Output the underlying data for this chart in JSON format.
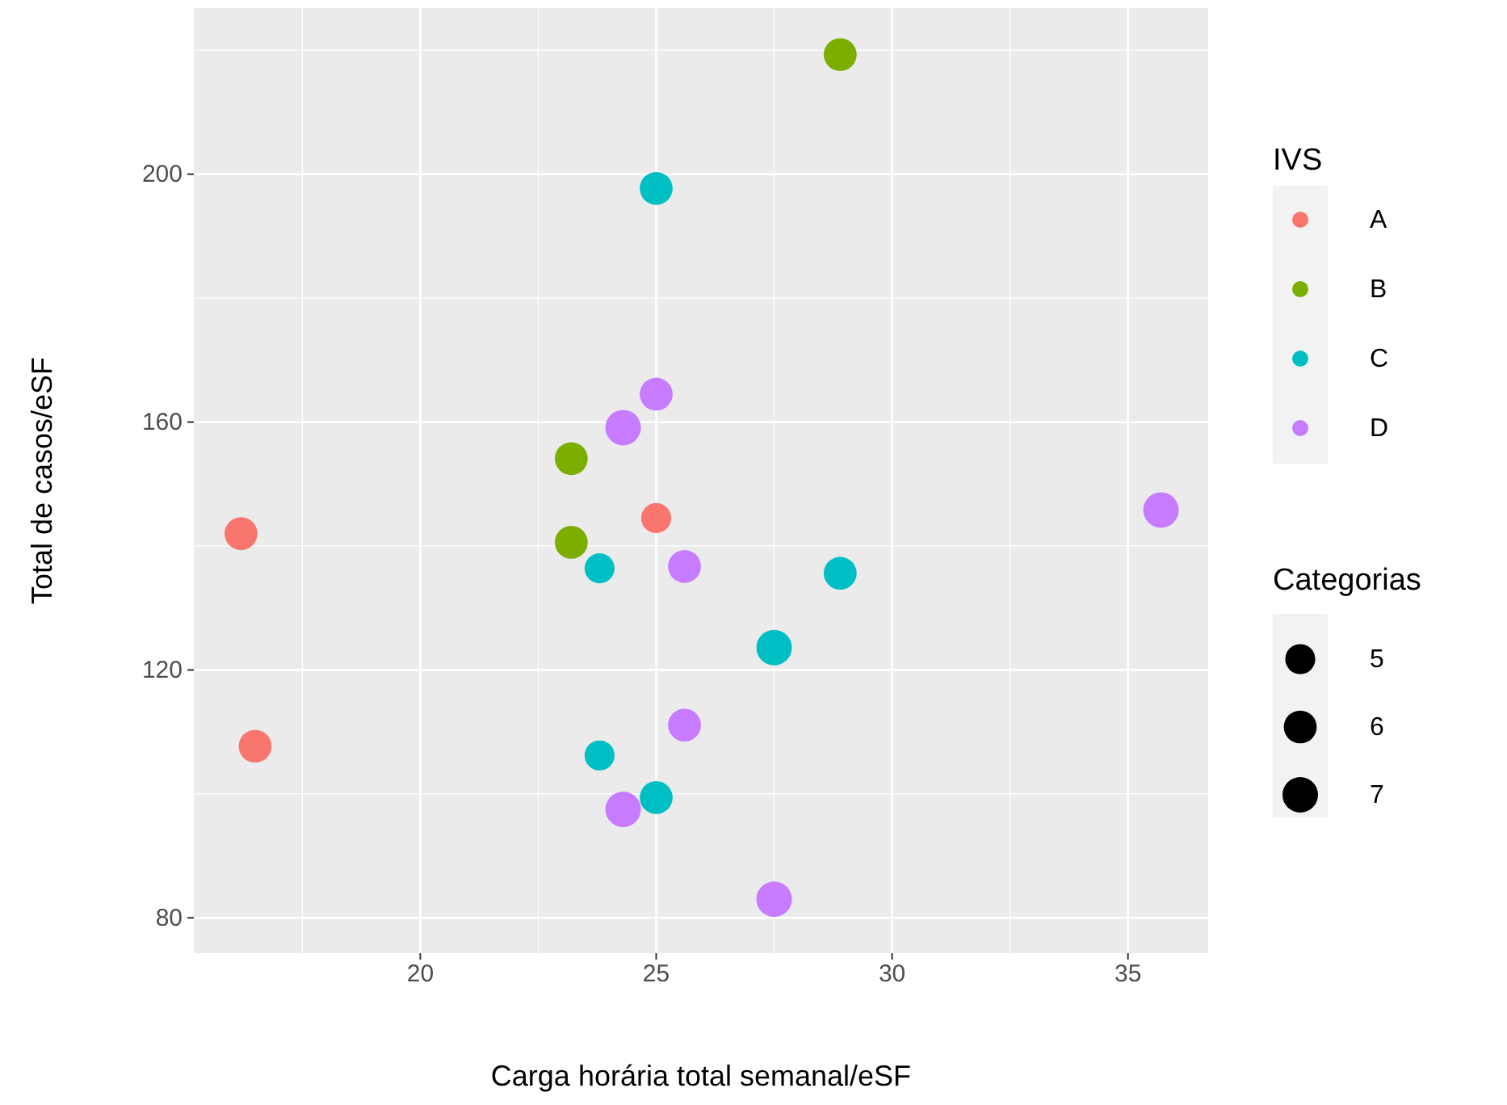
{
  "chart_data": {
    "type": "bubble",
    "xlabel": "Carga horária total semanal/eSF",
    "ylabel": "Total de casos/eSF",
    "legend_title": "IVS",
    "annotations": [
      "Categorias"
    ],
    "xlim": [
      15.2,
      36.7
    ],
    "xticks": [
      20,
      25,
      30,
      35
    ],
    "ylim": [
      74.3,
      226.8
    ],
    "yticks": [
      80,
      120,
      160,
      200
    ],
    "grid": true,
    "legend": "right",
    "size_legend": [
      5,
      6,
      7
    ],
    "series": [
      {
        "name": "A",
        "color": "#f8766d",
        "x": [
          16.2,
          16.5,
          25
        ],
        "values": [
          142,
          107.7,
          144.5
        ],
        "sizes": [
          6,
          6,
          5
        ]
      },
      {
        "name": "B",
        "color": "#7cae00",
        "x": [
          28.9,
          23.2,
          23.2
        ],
        "values": [
          219.3,
          154.1,
          140.6
        ],
        "sizes": [
          6,
          6,
          6
        ]
      },
      {
        "name": "C",
        "color": "#00bfc4",
        "x": [
          25,
          23.8,
          23.8,
          25,
          27.5,
          28.9
        ],
        "values": [
          197.7,
          136.4,
          106.2,
          99.4,
          123.6,
          135.6
        ],
        "sizes": [
          6,
          5,
          5,
          6,
          7,
          6
        ]
      },
      {
        "name": "D",
        "color": "#c77cff",
        "x": [
          25,
          24.3,
          25.6,
          25.6,
          24.3,
          27.5,
          35.7
        ],
        "values": [
          164.5,
          159.1,
          136.7,
          111.1,
          97.5,
          83,
          145.8
        ],
        "sizes": [
          6,
          7,
          6,
          6,
          7,
          7,
          7
        ]
      }
    ]
  }
}
